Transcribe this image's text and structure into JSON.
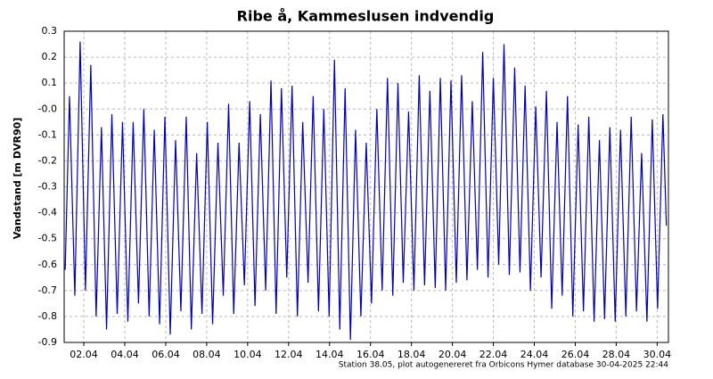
{
  "chart_data": {
    "type": "line",
    "title": "Ribe å, Kammeslusen indvendig",
    "y_label": "Vandstand [m DVR90]",
    "footer": "Station 38.05, plot autogenereret fra Orbicons Hymer database 30-04-2025 22:44",
    "color": "#0000b4",
    "grid": true,
    "xlim": [
      1.04,
      30.55
    ],
    "ylim": [
      -0.9,
      0.3
    ],
    "yticks": [
      0.3,
      0.2,
      0.1,
      {
        "value": 0,
        "label": "-0.0"
      },
      -0.1,
      -0.2,
      -0.3,
      -0.4,
      -0.5,
      -0.6,
      -0.7,
      -0.8,
      -0.9
    ],
    "xticks": [
      {
        "value": 2,
        "label": "02.04"
      },
      {
        "value": 4,
        "label": "04.04"
      },
      {
        "value": 6,
        "label": "06.04"
      },
      {
        "value": 8,
        "label": "08.04"
      },
      {
        "value": 10,
        "label": "10.04"
      },
      {
        "value": 12,
        "label": "12.04"
      },
      {
        "value": 14,
        "label": "14.04"
      },
      {
        "value": 16,
        "label": "16.04"
      },
      {
        "value": 18,
        "label": "18.04"
      },
      {
        "value": 20,
        "label": "20.04"
      },
      {
        "value": 22,
        "label": "22.04"
      },
      {
        "value": 24,
        "label": "24.04"
      },
      {
        "value": 26,
        "label": "26.04"
      },
      {
        "value": 28,
        "label": "28.04"
      },
      {
        "value": 30,
        "label": "30.04"
      }
    ],
    "x": [
      1.09,
      1.3,
      1.56,
      1.82,
      2.08,
      2.34,
      2.6,
      2.86,
      3.11,
      3.37,
      3.63,
      3.89,
      4.15,
      4.41,
      4.67,
      4.93,
      5.19,
      5.44,
      5.7,
      5.96,
      6.22,
      6.48,
      6.74,
      7.0,
      7.25,
      7.51,
      7.77,
      8.03,
      8.29,
      8.55,
      8.81,
      9.07,
      9.32,
      9.58,
      9.84,
      10.1,
      10.36,
      10.62,
      10.88,
      11.14,
      11.39,
      11.65,
      11.91,
      12.17,
      12.43,
      12.69,
      12.95,
      13.2,
      13.46,
      13.72,
      13.98,
      14.24,
      14.5,
      14.76,
      15.02,
      15.27,
      15.53,
      15.79,
      16.05,
      16.31,
      16.57,
      16.83,
      17.09,
      17.34,
      17.6,
      17.86,
      18.12,
      18.38,
      18.64,
      18.9,
      19.16,
      19.41,
      19.67,
      19.93,
      20.19,
      20.45,
      20.71,
      20.97,
      21.22,
      21.48,
      21.74,
      22.0,
      22.26,
      22.52,
      22.78,
      23.04,
      23.3,
      23.55,
      23.81,
      24.07,
      24.33,
      24.59,
      24.85,
      25.11,
      25.36,
      25.62,
      25.88,
      26.14,
      26.4,
      26.66,
      26.92,
      27.18,
      27.43,
      27.69,
      27.95,
      28.21,
      28.47,
      28.73,
      28.99,
      29.24,
      29.5,
      29.76,
      30.02,
      30.28,
      30.45
    ],
    "values": [
      -0.62,
      0.05,
      -0.72,
      0.26,
      -0.7,
      0.17,
      -0.8,
      -0.07,
      -0.85,
      -0.02,
      -0.79,
      -0.05,
      -0.82,
      -0.05,
      -0.75,
      0.0,
      -0.8,
      -0.08,
      -0.83,
      -0.03,
      -0.87,
      -0.12,
      -0.78,
      -0.03,
      -0.85,
      -0.17,
      -0.79,
      -0.05,
      -0.83,
      -0.13,
      -0.72,
      0.02,
      -0.79,
      -0.13,
      -0.68,
      0.03,
      -0.76,
      -0.02,
      -0.7,
      0.11,
      -0.79,
      0.08,
      -0.65,
      0.09,
      -0.8,
      -0.05,
      -0.67,
      0.05,
      -0.78,
      0.0,
      -0.8,
      0.19,
      -0.85,
      0.08,
      -0.89,
      -0.08,
      -0.8,
      -0.13,
      -0.75,
      0.0,
      -0.7,
      0.12,
      -0.72,
      0.1,
      -0.67,
      -0.01,
      -0.7,
      0.13,
      -0.68,
      0.07,
      -0.69,
      0.12,
      -0.7,
      0.11,
      -0.67,
      0.13,
      -0.66,
      0.03,
      -0.62,
      0.22,
      -0.65,
      0.12,
      -0.6,
      0.25,
      -0.64,
      0.16,
      -0.63,
      0.09,
      -0.7,
      0.01,
      -0.65,
      0.07,
      -0.77,
      -0.05,
      -0.72,
      0.05,
      -0.8,
      -0.06,
      -0.78,
      -0.03,
      -0.82,
      -0.12,
      -0.81,
      -0.07,
      -0.82,
      -0.08,
      -0.8,
      -0.03,
      -0.78,
      -0.17,
      -0.82,
      -0.04,
      -0.77,
      -0.02,
      -0.45
    ]
  }
}
